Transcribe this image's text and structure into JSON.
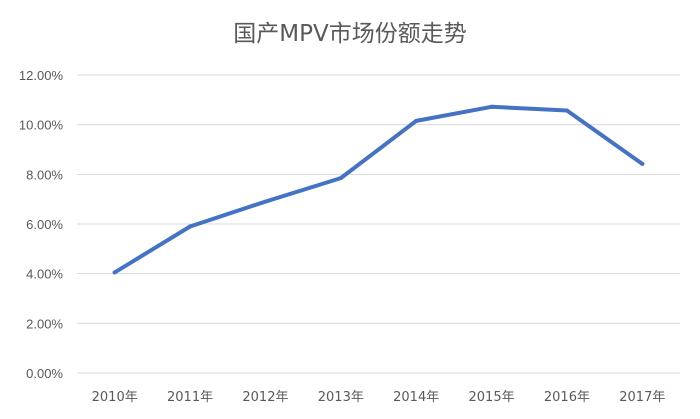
{
  "chart_data": {
    "type": "line",
    "title": "国产MPV市场份额走势",
    "categories": [
      "2010年",
      "2011年",
      "2012年",
      "2013年",
      "2014年",
      "2015年",
      "2016年",
      "2017年"
    ],
    "series": [
      {
        "values": [
          4.05,
          5.9,
          6.9,
          7.85,
          10.15,
          10.72,
          10.57,
          8.42
        ]
      }
    ],
    "ylim": [
      0,
      12
    ],
    "yticks": [
      "0.00%",
      "2.00%",
      "4.00%",
      "6.00%",
      "8.00%",
      "10.00%",
      "12.00%"
    ],
    "grid": true,
    "line_color": "#4472C4",
    "grid_color": "#D9D9D9"
  }
}
